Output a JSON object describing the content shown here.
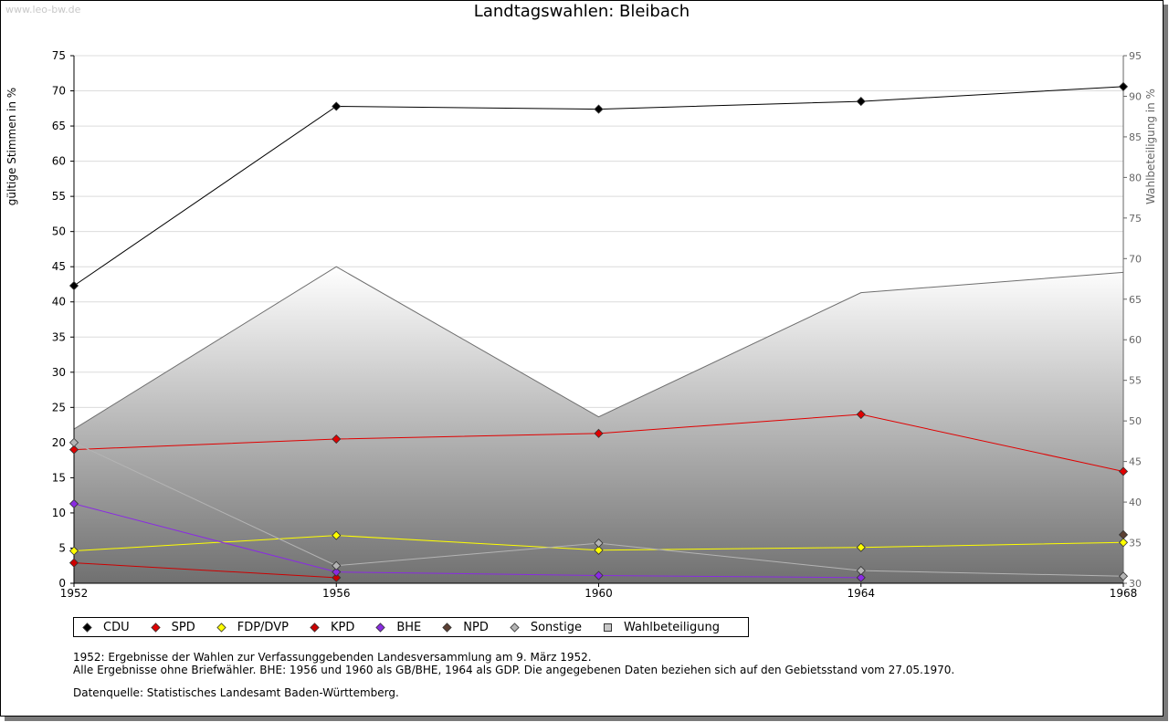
{
  "watermark": "www.leo-bw.de",
  "chart_data": {
    "type": "line",
    "title": "Landtagswahlen: Bleibach",
    "ylabel": "gültige Stimmen in %",
    "y2label": "Wahlbeteiligung in %",
    "x": [
      "1952",
      "1956",
      "1960",
      "1964",
      "1968"
    ],
    "xlim": [
      1952,
      1968
    ],
    "ylim": [
      0,
      75
    ],
    "y_ticks": [
      0,
      5,
      10,
      15,
      20,
      25,
      30,
      35,
      40,
      45,
      50,
      55,
      60,
      65,
      70,
      75
    ],
    "y2lim": [
      30,
      95
    ],
    "y2_ticks": [
      30,
      35,
      40,
      45,
      50,
      55,
      60,
      65,
      70,
      75,
      80,
      85,
      90,
      95
    ],
    "grid": true,
    "legend_position": "bottom",
    "series": [
      {
        "name": "CDU",
        "color": "#000000",
        "values": [
          42.3,
          67.8,
          67.4,
          68.5,
          70.6
        ]
      },
      {
        "name": "SPD",
        "color": "#e00000",
        "values": [
          19.0,
          20.5,
          21.3,
          24.0,
          15.9
        ]
      },
      {
        "name": "FDP/DVP",
        "color": "#ffff00",
        "values": [
          4.6,
          6.8,
          4.7,
          5.1,
          5.8
        ]
      },
      {
        "name": "KPD",
        "color": "#cc0000",
        "values": [
          2.9,
          0.8,
          null,
          null,
          null
        ]
      },
      {
        "name": "BHE",
        "color": "#8a2be2",
        "values": [
          11.3,
          1.6,
          1.1,
          0.8,
          null
        ]
      },
      {
        "name": "NPD",
        "color": "#5c4033",
        "values": [
          null,
          null,
          null,
          null,
          6.9
        ]
      },
      {
        "name": "Sonstige",
        "color": "#b4b4b4",
        "values": [
          20.0,
          2.5,
          5.7,
          1.8,
          1.0
        ]
      }
    ],
    "turnout": {
      "name": "Wahlbeteiligung",
      "axis": "right",
      "values": [
        49.0,
        69.0,
        50.5,
        65.8,
        68.3
      ]
    }
  },
  "notes": [
    "1952: Ergebnisse der Wahlen zur Verfassunggebenden Landesversammlung am 9. März 1952.",
    "Alle Ergebnisse ohne Briefwähler. BHE: 1956 und 1960 als GB/BHE, 1964 als GDP. Die angegebenen Daten beziehen sich auf den Gebietsstand vom 27.05.1970."
  ],
  "source": "Datenquelle: Statistisches Landesamt Baden-Württemberg."
}
